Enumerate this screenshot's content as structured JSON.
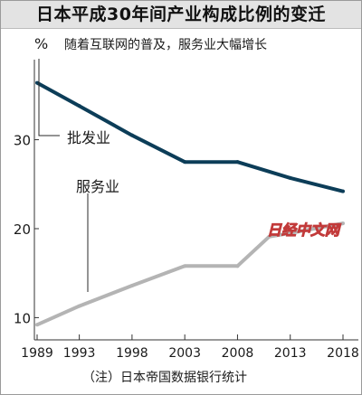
{
  "title": "日本平成30年间产业构成比例的变迁",
  "watermark": "日经中文网",
  "chart_data": {
    "type": "line",
    "title": "日本平成30年间产业构成比例的变迁",
    "subtitle": "随着互联网的普及，服务业大幅增长",
    "ylabel": "%",
    "xlabel": "",
    "x": [
      1989,
      1993,
      1998,
      2003,
      2008,
      2013,
      2018
    ],
    "x_ticks": [
      "1989",
      "1993",
      "1998",
      "2003",
      "2008",
      "2013",
      "2018"
    ],
    "y_ticks": [
      "10",
      "20",
      "30"
    ],
    "ylim": [
      7.5,
      39
    ],
    "xlim": [
      1988,
      2019
    ],
    "grid": false,
    "series": [
      {
        "name": "批发业",
        "color": "#0c3d58",
        "x": [
          1989,
          1993,
          1998,
          2003,
          2008,
          2013,
          2018
        ],
        "values": [
          36.4,
          33.8,
          30.5,
          27.5,
          27.5,
          25.7,
          24.2
        ]
      },
      {
        "name": "服务业",
        "color": "#b4b4b4",
        "x": [
          1989,
          1993,
          1998,
          2003,
          2008,
          2011,
          2013,
          2018
        ],
        "values": [
          9.2,
          11.3,
          13.6,
          15.8,
          15.8,
          19.1,
          19.5,
          20.6
        ]
      }
    ],
    "note": "（注）日本帝国数据银行统计"
  }
}
